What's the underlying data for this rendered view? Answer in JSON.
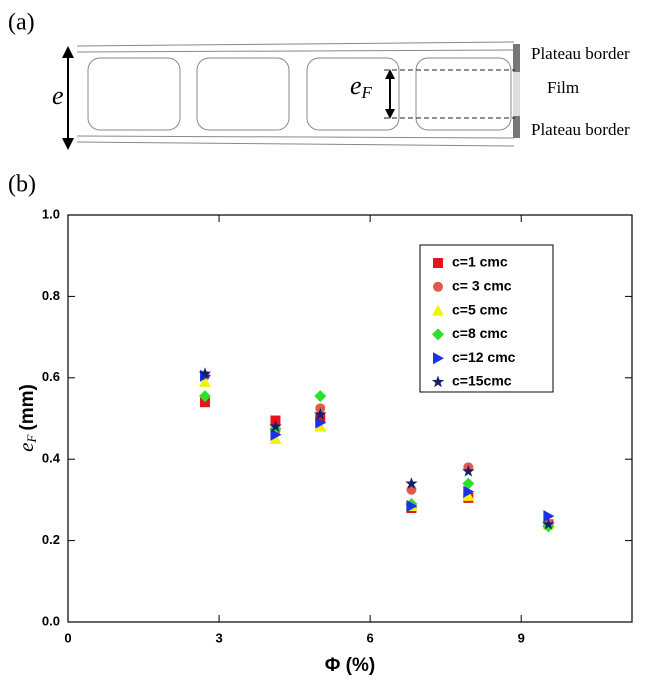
{
  "diagram": {
    "panel_label": "(a)",
    "thickness_symbol": "e",
    "film_symbol": "e",
    "film_subscript": "F",
    "labels": [
      "Plateau border",
      "Film",
      "Plateau border"
    ]
  },
  "chart_data": {
    "type": "scatter",
    "panel_label": "(b)",
    "x_label": "Φ (%)",
    "y_label_symbol": "e",
    "y_label_subscript": "F",
    "y_label_unit": "(mm)",
    "x": [
      2.72,
      4.12,
      5.01,
      6.82,
      7.95,
      9.54
    ],
    "series": [
      {
        "name": "c=1 cmc",
        "color": "#e8141c",
        "marker": "square",
        "values": [
          0.54,
          0.495,
          0.5,
          0.28,
          0.305,
          0.24
        ]
      },
      {
        "name": "c= 3 cmc",
        "color": "#e05a48",
        "marker": "circle",
        "values": [
          0.605,
          0.47,
          0.525,
          0.325,
          0.38,
          0.24
        ]
      },
      {
        "name": "c=5 cmc",
        "color": "#f2f20a",
        "marker": "triangle-up",
        "values": [
          0.59,
          0.45,
          0.48,
          0.285,
          0.31,
          0.24
        ]
      },
      {
        "name": "c=8 cmc",
        "color": "#2ee02e",
        "marker": "diamond",
        "values": [
          0.555,
          0.475,
          0.555,
          0.29,
          0.34,
          0.235
        ]
      },
      {
        "name": "c=12 cmc",
        "color": "#1a33e6",
        "marker": "triangle-right",
        "values": [
          0.605,
          0.46,
          0.49,
          0.285,
          0.32,
          0.26
        ]
      },
      {
        "name": "c=15cmc",
        "color": "#14206e",
        "marker": "star",
        "values": [
          0.61,
          0.48,
          0.51,
          0.34,
          0.37,
          0.24
        ]
      }
    ],
    "xlim": [
      0,
      11.2
    ],
    "ylim": [
      0,
      1
    ],
    "xticks": [
      0,
      3,
      6,
      9
    ],
    "yticks": [
      {
        "value": 0,
        "label": "0.0"
      },
      0.2,
      0.4,
      0.6,
      0.8,
      {
        "value": 1,
        "label": "1.0"
      }
    ],
    "grid": false,
    "legend": "upper-right"
  }
}
